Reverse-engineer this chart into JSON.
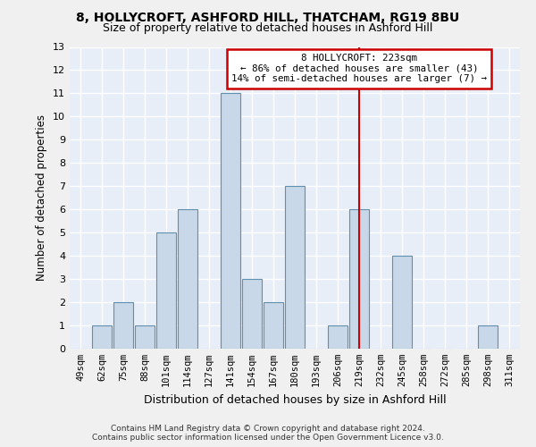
{
  "title": "8, HOLLYCROFT, ASHFORD HILL, THATCHAM, RG19 8BU",
  "subtitle": "Size of property relative to detached houses in Ashford Hill",
  "xlabel": "Distribution of detached houses by size in Ashford Hill",
  "ylabel": "Number of detached properties",
  "categories": [
    "49sqm",
    "62sqm",
    "75sqm",
    "88sqm",
    "101sqm",
    "114sqm",
    "127sqm",
    "141sqm",
    "154sqm",
    "167sqm",
    "180sqm",
    "193sqm",
    "206sqm",
    "219sqm",
    "232sqm",
    "245sqm",
    "258sqm",
    "272sqm",
    "285sqm",
    "298sqm",
    "311sqm"
  ],
  "values": [
    0,
    1,
    2,
    1,
    5,
    6,
    0,
    11,
    3,
    2,
    7,
    0,
    1,
    6,
    0,
    4,
    0,
    0,
    0,
    1,
    0
  ],
  "bar_color": "#c8d8e8",
  "bar_edge_color": "#6090b0",
  "background_color": "#e8eef8",
  "grid_color": "#ffffff",
  "annotation_text": "8 HOLLYCROFT: 223sqm\n← 86% of detached houses are smaller (43)\n14% of semi-detached houses are larger (7) →",
  "annotation_box_color": "#ffffff",
  "annotation_box_edge": "#cc0000",
  "vline_x_index": 13,
  "vline_color": "#cc0000",
  "ylim": [
    0,
    13
  ],
  "yticks": [
    0,
    1,
    2,
    3,
    4,
    5,
    6,
    7,
    8,
    9,
    10,
    11,
    12,
    13
  ],
  "footer_line1": "Contains HM Land Registry data © Crown copyright and database right 2024.",
  "footer_line2": "Contains public sector information licensed under the Open Government Licence v3.0.",
  "fig_width": 6.0,
  "fig_height": 5.0,
  "dpi": 100
}
